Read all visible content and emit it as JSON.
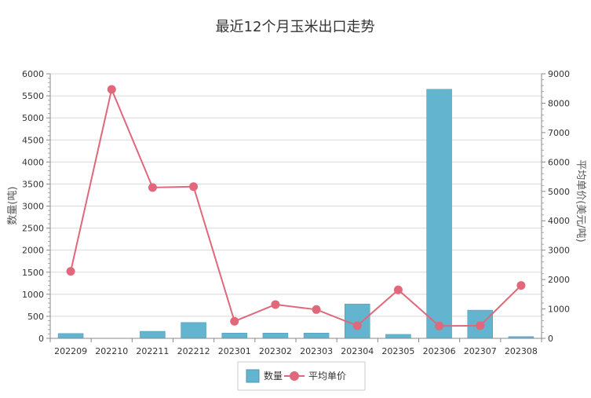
{
  "chart_data": {
    "type": "bar+line",
    "title": "最近12个月玉米出口走势",
    "categories": [
      "202209",
      "202210",
      "202211",
      "202212",
      "202301",
      "202302",
      "202303",
      "202304",
      "202305",
      "202306",
      "202307",
      "202308"
    ],
    "series": [
      {
        "name": "数量",
        "type": "bar",
        "axis": "left",
        "color": "#62b4cf",
        "values": [
          110,
          0,
          160,
          360,
          120,
          120,
          120,
          780,
          90,
          5650,
          640,
          40
        ]
      },
      {
        "name": "平均单价",
        "type": "line",
        "axis": "right",
        "color": "#e0687a",
        "values": [
          2280,
          8470,
          5130,
          5160,
          580,
          1150,
          980,
          430,
          1650,
          420,
          430,
          1800
        ]
      }
    ],
    "ylabel_left": "数量(吨)",
    "ylabel_right": "平均单价(美元/吨)",
    "ylim_left": [
      0,
      6000
    ],
    "ylim_right": [
      0,
      9000
    ],
    "yticks_left": [
      "0",
      "500",
      "1000",
      "1500",
      "2000",
      "2500",
      "3000",
      "3500",
      "4000",
      "4500",
      "5000",
      "5500",
      "6000"
    ],
    "yticks_right": [
      "0",
      "1000",
      "2000",
      "3000",
      "4000",
      "5000",
      "6000",
      "7000",
      "8000",
      "9000"
    ],
    "grid": true,
    "legend_position": "bottom-center"
  }
}
